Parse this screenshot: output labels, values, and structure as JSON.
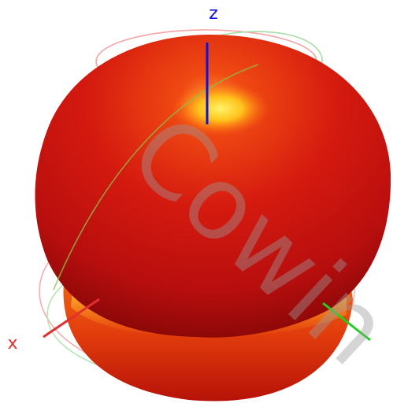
{
  "axes": {
    "z_label": "z",
    "x_label": "x",
    "z_color": "#1010e0",
    "x_color": "#e03030",
    "y_color": "#20d020"
  },
  "watermark": {
    "text": "Cowin",
    "color": "#9a9a9a"
  },
  "pattern": {
    "upper_lobe_color": "#d01c10",
    "lower_lobe_color": "#e23a08",
    "hotspot_color": "#ffe04a"
  }
}
